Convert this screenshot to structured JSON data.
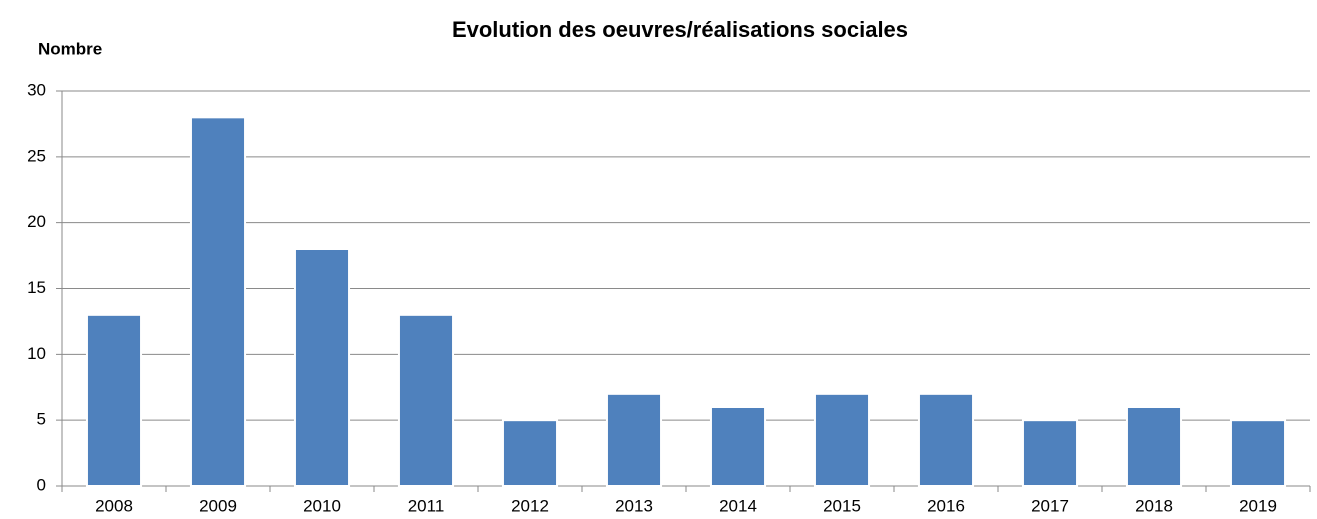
{
  "chart_data": {
    "type": "bar",
    "title": "Evolution des oeuvres/réalisations sociales",
    "y_label": "Nombre",
    "categories": [
      "2008",
      "2009",
      "2010",
      "2011",
      "2012",
      "2013",
      "2014",
      "2015",
      "2016",
      "2017",
      "2018",
      "2019"
    ],
    "values": [
      13,
      28,
      18,
      13,
      5,
      7,
      6,
      7,
      7,
      5,
      6,
      5
    ],
    "color": "#4f81bd",
    "ylim": [
      0,
      30
    ],
    "yticks": [
      0,
      5,
      10,
      15,
      20,
      25,
      30
    ],
    "grid": true
  }
}
